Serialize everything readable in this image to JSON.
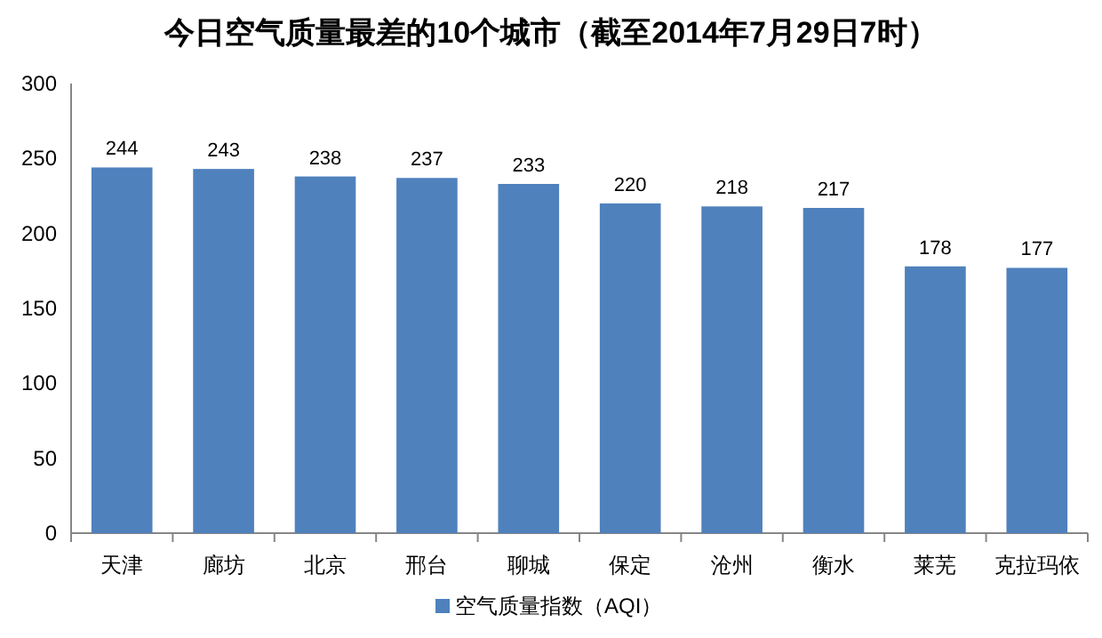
{
  "chart_data": {
    "type": "bar",
    "title": "今日空气质量最差的10个城市（截至2014年7月29日7时）",
    "categories": [
      "天津",
      "廊坊",
      "北京",
      "邢台",
      "聊城",
      "保定",
      "沧州",
      "衡水",
      "莱芜",
      "克拉玛依"
    ],
    "series": [
      {
        "name": "空气质量指数（AQI）",
        "color": "#4f81bd",
        "values": [
          244,
          243,
          238,
          237,
          233,
          220,
          218,
          217,
          178,
          177
        ]
      }
    ],
    "ylim": [
      0,
      300
    ],
    "yticks": [
      0,
      50,
      100,
      150,
      200,
      250,
      300
    ],
    "data_labels": true,
    "legend": "bottom"
  }
}
